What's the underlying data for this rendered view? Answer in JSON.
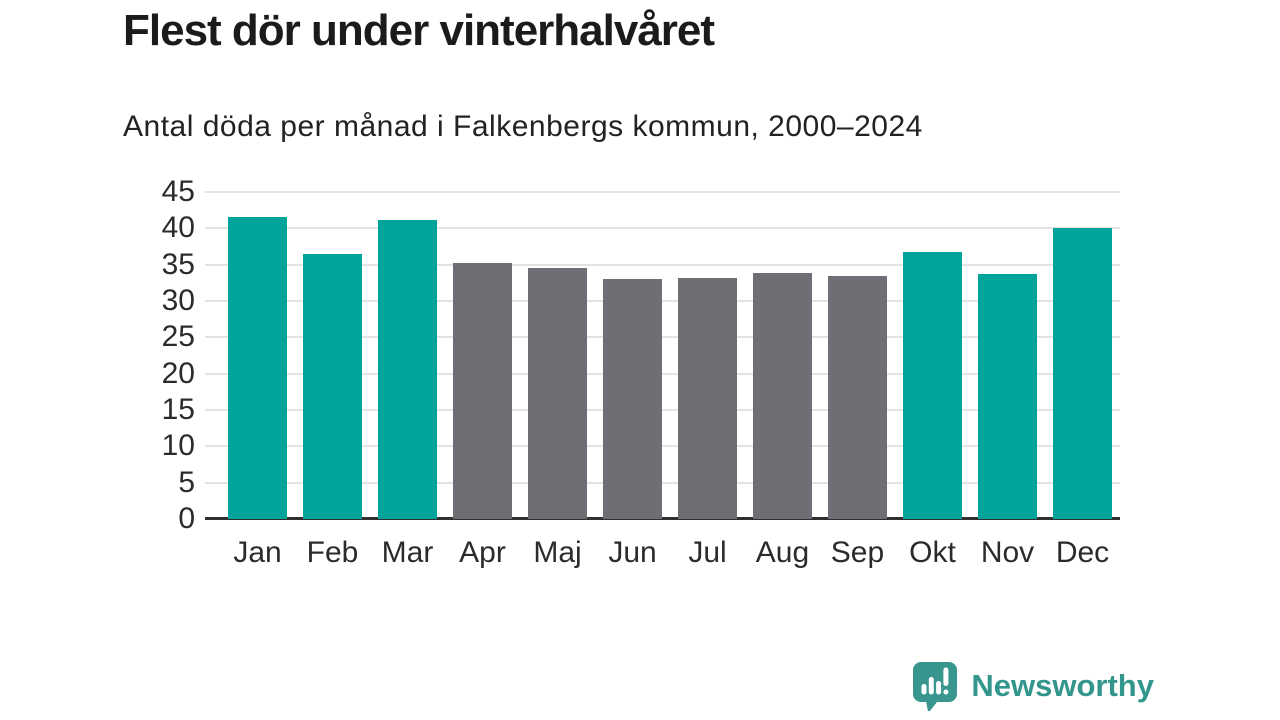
{
  "header": {
    "title": "Flest dör under vinterhalvåret",
    "subtitle": "Antal döda per månad i Falkenbergs kommun, 2000–2024"
  },
  "chart_data": {
    "type": "bar",
    "categories": [
      "Jan",
      "Feb",
      "Mar",
      "Apr",
      "Maj",
      "Jun",
      "Jul",
      "Aug",
      "Sep",
      "Okt",
      "Nov",
      "Dec"
    ],
    "values": [
      41.6,
      36.5,
      41.2,
      35.3,
      34.6,
      33.0,
      33.2,
      33.8,
      33.5,
      36.7,
      33.7,
      40.0
    ],
    "highlight_winter_months": [
      true,
      true,
      true,
      false,
      false,
      false,
      false,
      false,
      false,
      true,
      true,
      true
    ],
    "title": "Flest dör under vinterhalvåret",
    "subtitle": "Antal döda per månad i Falkenbergs kommun, 2000–2024",
    "xlabel": "",
    "ylabel": "",
    "ylim": [
      0,
      45
    ],
    "yticks": [
      0,
      5,
      10,
      15,
      20,
      25,
      30,
      35,
      40,
      45
    ],
    "grid": "horizontal-only",
    "legend": "none",
    "colors": {
      "winter_bar": "#00a49a",
      "summer_bar": "#706d74",
      "gridline": "#e3e3e3",
      "axis_line": "#2f2f2f",
      "text": "#1b1b1b"
    }
  },
  "footer": {
    "brand": "Newsworthy",
    "brand_color": "#33968d",
    "brand_icon": "newsworthy-speech-bubble-barchart-icon"
  }
}
